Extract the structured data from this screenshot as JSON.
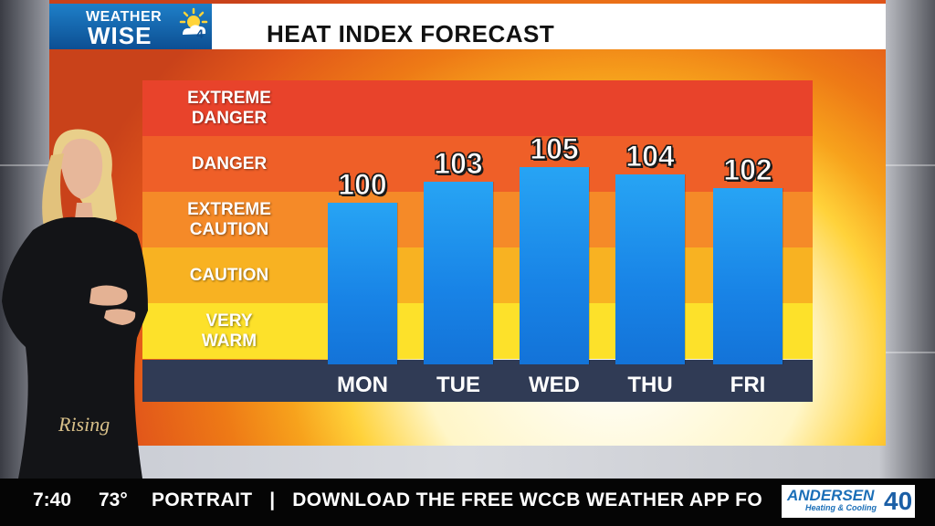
{
  "header": {
    "logo_line1": "WEATHER",
    "logo_line2": "WISE",
    "logo_icon": "sun-cloud-4-icon",
    "title": "HEAT INDEX FORECAST"
  },
  "chart_data": {
    "type": "bar",
    "title": "HEAT INDEX FORECAST",
    "categories": [
      "MON",
      "TUE",
      "WED",
      "THU",
      "FRI"
    ],
    "values": [
      100,
      103,
      105,
      104,
      102
    ],
    "xlabel": "",
    "ylabel": "",
    "ylim": [
      80,
      125
    ],
    "grid": false,
    "bands": [
      {
        "label": "EXTREME DANGER",
        "color": "#e8432b"
      },
      {
        "label": "DANGER",
        "color": "#ef5f28"
      },
      {
        "label": "EXTREME CAUTION",
        "color": "#f58a28"
      },
      {
        "label": "CAUTION",
        "color": "#f8b222"
      },
      {
        "label": "VERY WARM",
        "color": "#fde12a"
      }
    ],
    "bar_color": "#1c8be8"
  },
  "overlay": {
    "show_logo": "Rising"
  },
  "ticker": {
    "time": "7:40",
    "temp": "73°",
    "message": "PORTRAIT   |   DOWNLOAD THE FREE WCCB WEATHER APP FO"
  },
  "sponsor": {
    "name": "ANDERSEN",
    "subtitle": "Heating & Cooling",
    "badge": "40"
  }
}
